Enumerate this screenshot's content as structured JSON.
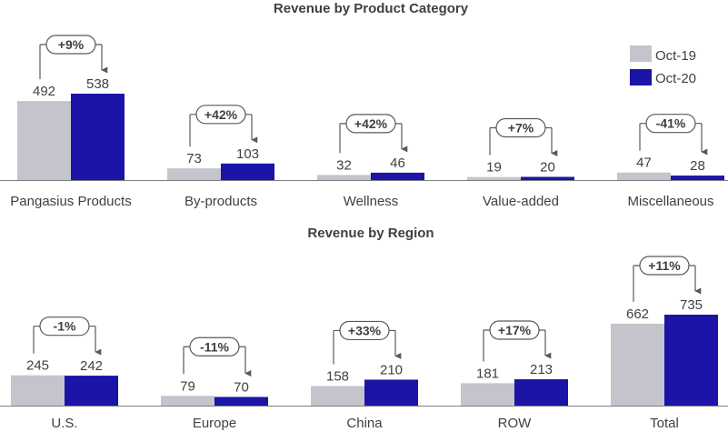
{
  "colors": {
    "oct19": "#c4c4cc",
    "oct20": "#1b14a6",
    "text": "#404040",
    "arrow": "#595959",
    "axis": "#7f7f7f"
  },
  "legend": [
    "Oct-19",
    "Oct-20"
  ],
  "chart_data": [
    {
      "type": "bar",
      "title": "Revenue by Product Category",
      "categories": [
        "Pangasius Products",
        "By-products",
        "Wellness",
        "Value-added",
        "Miscellaneous"
      ],
      "series": [
        {
          "name": "Oct-19",
          "values": [
            492,
            73,
            32,
            19,
            47
          ]
        },
        {
          "name": "Oct-20",
          "values": [
            538,
            103,
            46,
            20,
            28
          ]
        }
      ],
      "changes": [
        "+9%",
        "+42%",
        "+42%",
        "+7%",
        "-41%"
      ],
      "legend": "top-right"
    },
    {
      "type": "bar",
      "title": "Revenue by Region",
      "categories": [
        "U.S.",
        "Europe",
        "China",
        "ROW",
        "Total"
      ],
      "series": [
        {
          "name": "Oct-19",
          "values": [
            245,
            79,
            158,
            181,
            662
          ]
        },
        {
          "name": "Oct-20",
          "values": [
            242,
            70,
            210,
            213,
            735
          ]
        }
      ],
      "changes": [
        "-1%",
        "-11%",
        "+33%",
        "+17%",
        "+11%"
      ]
    }
  ]
}
